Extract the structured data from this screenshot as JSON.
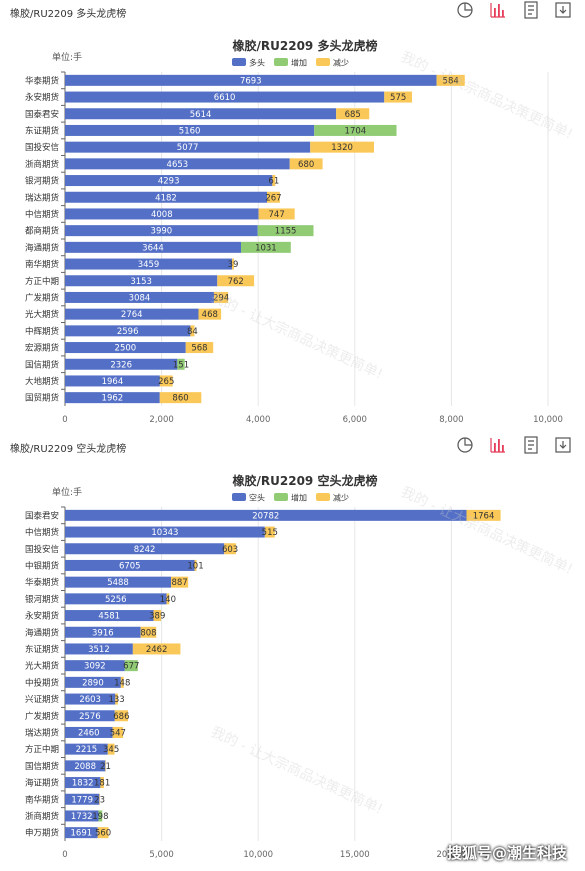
{
  "top": {
    "header_title": "橡胶/RU2209 多头龙虎榜"
  },
  "bottom": {
    "header_title": "橡胶/RU2209 空头龙虎榜"
  },
  "watermark": "我的 - 让大宗商品决策更简单!",
  "brand": "搜狐号@潮生科技",
  "icons": [
    "pie-chart-icon",
    "bar-chart-icon",
    "data-view-icon",
    "download-icon"
  ],
  "colors": {
    "main": "#5470c6",
    "increase": "#91cc75",
    "decrease": "#fac858"
  },
  "chart_data": [
    {
      "type": "bar",
      "title": "橡胶/RU2209 多头龙虎榜",
      "unit": "单位:手",
      "legend": [
        "多头",
        "增加",
        "减少"
      ],
      "categories": [
        "华泰期货",
        "永安期货",
        "国泰君安",
        "东证期货",
        "国投安信",
        "浙商期货",
        "银河期货",
        "瑞达期货",
        "中信期货",
        "都商期货",
        "海通期货",
        "南华期货",
        "方正中期",
        "广发期货",
        "光大期货",
        "中辉期货",
        "宏源期货",
        "国信期货",
        "大地期货",
        "国贸期货"
      ],
      "series": [
        {
          "name": "多头",
          "values": [
            7693,
            6610,
            5614,
            5160,
            5077,
            4653,
            4293,
            4182,
            4008,
            3990,
            3644,
            3459,
            3153,
            3084,
            2764,
            2596,
            2500,
            2326,
            1964,
            1962
          ]
        },
        {
          "name": "增加",
          "values": [
            null,
            null,
            null,
            1704,
            null,
            null,
            null,
            null,
            null,
            1155,
            1031,
            null,
            null,
            null,
            null,
            null,
            null,
            151,
            null,
            null
          ]
        },
        {
          "name": "减少",
          "values": [
            584,
            575,
            685,
            null,
            1320,
            680,
            61,
            267,
            747,
            null,
            null,
            39,
            762,
            294,
            468,
            84,
            568,
            null,
            265,
            860
          ]
        }
      ],
      "xlim": [
        0,
        10000
      ],
      "ticks": [
        "0",
        "2,000",
        "4,000",
        "6,000",
        "8,000",
        "10,000"
      ]
    },
    {
      "type": "bar",
      "title": "橡胶/RU2209 空头龙虎榜",
      "unit": "单位:手",
      "legend": [
        "空头",
        "增加",
        "减少"
      ],
      "categories": [
        "国泰君安",
        "中信期货",
        "国投安信",
        "中银期货",
        "华泰期货",
        "银河期货",
        "永安期货",
        "海通期货",
        "东证期货",
        "光大期货",
        "中投期货",
        "兴证期货",
        "广发期货",
        "瑞达期货",
        "方正中期",
        "国信期货",
        "海证期货",
        "南华期货",
        "浙商期货",
        "申万期货"
      ],
      "series": [
        {
          "name": "空头",
          "values": [
            20782,
            10343,
            8242,
            6705,
            5488,
            5256,
            4581,
            3916,
            3512,
            3092,
            2890,
            2603,
            2576,
            2460,
            2215,
            2088,
            1832,
            1779,
            1732,
            1691
          ]
        },
        {
          "name": "增加",
          "values": [
            null,
            null,
            null,
            null,
            null,
            null,
            null,
            null,
            null,
            677,
            null,
            null,
            null,
            null,
            null,
            null,
            null,
            null,
            198,
            null
          ]
        },
        {
          "name": "减少",
          "values": [
            1764,
            515,
            603,
            101,
            887,
            140,
            389,
            808,
            2462,
            null,
            148,
            133,
            686,
            547,
            345,
            21,
            181,
            23,
            null,
            560
          ]
        }
      ],
      "xlim": [
        0,
        25000
      ],
      "ticks": [
        "0",
        "5,000",
        "10,000",
        "15,000",
        "20,000"
      ]
    }
  ]
}
